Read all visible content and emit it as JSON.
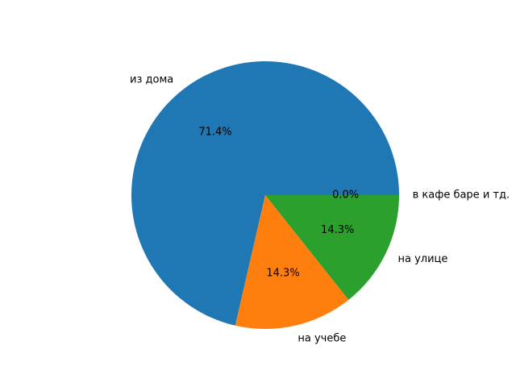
{
  "chart_data": {
    "type": "pie",
    "categories": [
      "из дома",
      "на учебе",
      "на улице",
      "в кафе баре и тд."
    ],
    "values": [
      71.4,
      14.3,
      14.3,
      0.0
    ],
    "pct_labels": [
      "71.4%",
      "14.3%",
      "14.3%",
      "0.0%"
    ],
    "colors": [
      "#1f77b4",
      "#ff7f0e",
      "#2ca02c",
      "#d62728"
    ],
    "start_angle_deg": 0,
    "direction": "counterclockwise"
  }
}
